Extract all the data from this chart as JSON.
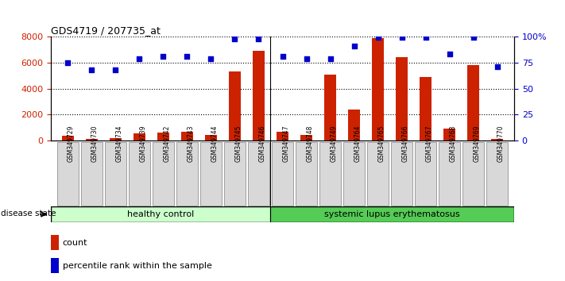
{
  "title": "GDS4719 / 207735_at",
  "samples": [
    "GSM349729",
    "GSM349730",
    "GSM349734",
    "GSM349739",
    "GSM349742",
    "GSM349743",
    "GSM349744",
    "GSM349745",
    "GSM349746",
    "GSM349747",
    "GSM349748",
    "GSM349749",
    "GSM349764",
    "GSM349765",
    "GSM349766",
    "GSM349767",
    "GSM349768",
    "GSM349769",
    "GSM349770"
  ],
  "counts": [
    350,
    150,
    200,
    550,
    600,
    700,
    400,
    5300,
    6900,
    700,
    450,
    5100,
    2400,
    7900,
    6400,
    4900,
    900,
    5800,
    150
  ],
  "percentiles": [
    75,
    68,
    68,
    79,
    81,
    81,
    79,
    98,
    98,
    81,
    79,
    79,
    91,
    99,
    99,
    99,
    83,
    99,
    71
  ],
  "healthy_count": 9,
  "sle_count": 10,
  "bar_color": "#cc2200",
  "dot_color": "#0000cc",
  "bg_color": "#ffffff",
  "grid_color": "#000000",
  "ylim_left": [
    0,
    8000
  ],
  "ylim_right": [
    0,
    100
  ],
  "yticks_left": [
    0,
    2000,
    4000,
    6000,
    8000
  ],
  "yticks_right": [
    0,
    25,
    50,
    75,
    100
  ],
  "ytick_labels_right": [
    "0",
    "25",
    "50",
    "75",
    "100%"
  ],
  "healthy_label": "healthy control",
  "sle_label": "systemic lupus erythematosus",
  "disease_state_label": "disease state",
  "legend_count_label": "count",
  "legend_pct_label": "percentile rank within the sample",
  "healthy_color": "#ccffcc",
  "sle_color": "#55cc55",
  "tick_label_color_left": "#cc2200",
  "tick_label_color_right": "#0000cc"
}
